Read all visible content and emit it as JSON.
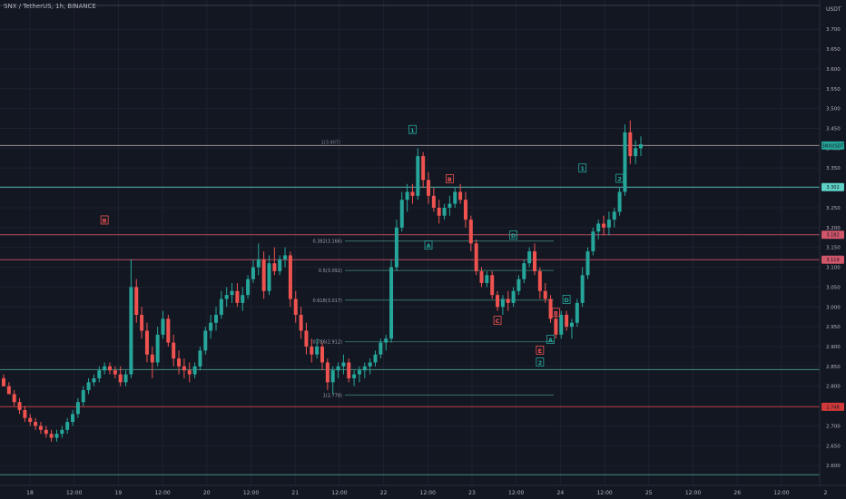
{
  "chart_data": {
    "type": "candlestick",
    "title": "SNX / TetherUS, 1h, BINANCE",
    "y_unit": "USDT",
    "ylim": [
      2.55,
      3.76
    ],
    "y_ticks": [
      "3.700",
      "3.650",
      "3.600",
      "3.550",
      "3.500",
      "3.450",
      "3.400",
      "3.350",
      "3.300",
      "3.250",
      "3.200",
      "3.150",
      "3.100",
      "3.050",
      "3.000",
      "2.950",
      "2.900",
      "2.850",
      "2.800",
      "2.750",
      "2.700",
      "2.650",
      "2.600"
    ],
    "x_ticks": [
      "18",
      "12:00",
      "19",
      "12:00",
      "20",
      "12:00",
      "21",
      "12:00",
      "22",
      "12:00",
      "23",
      "12:00",
      "24",
      "12:00",
      "25",
      "12:00",
      "26",
      "12:00",
      "2"
    ],
    "candles": [
      [
        2.82,
        2.83,
        2.8,
        2.8
      ],
      [
        2.8,
        2.81,
        2.78,
        2.78
      ],
      [
        2.78,
        2.79,
        2.75,
        2.76
      ],
      [
        2.76,
        2.77,
        2.73,
        2.74
      ],
      [
        2.74,
        2.75,
        2.71,
        2.72
      ],
      [
        2.72,
        2.73,
        2.7,
        2.71
      ],
      [
        2.71,
        2.72,
        2.69,
        2.7
      ],
      [
        2.7,
        2.71,
        2.68,
        2.69
      ],
      [
        2.69,
        2.7,
        2.67,
        2.68
      ],
      [
        2.68,
        2.69,
        2.66,
        2.67
      ],
      [
        2.67,
        2.69,
        2.66,
        2.68
      ],
      [
        2.68,
        2.7,
        2.67,
        2.69
      ],
      [
        2.69,
        2.72,
        2.68,
        2.71
      ],
      [
        2.71,
        2.74,
        2.7,
        2.73
      ],
      [
        2.73,
        2.77,
        2.72,
        2.76
      ],
      [
        2.76,
        2.8,
        2.75,
        2.79
      ],
      [
        2.79,
        2.82,
        2.78,
        2.81
      ],
      [
        2.81,
        2.83,
        2.8,
        2.82
      ],
      [
        2.82,
        2.85,
        2.81,
        2.84
      ],
      [
        2.84,
        2.86,
        2.83,
        2.85
      ],
      [
        2.85,
        2.86,
        2.83,
        2.84
      ],
      [
        2.84,
        2.85,
        2.82,
        2.83
      ],
      [
        2.83,
        2.85,
        2.8,
        2.81
      ],
      [
        2.81,
        2.84,
        2.8,
        2.83
      ],
      [
        2.83,
        3.12,
        2.82,
        3.05
      ],
      [
        3.05,
        3.07,
        2.96,
        2.98
      ],
      [
        2.98,
        3.0,
        2.92,
        2.94
      ],
      [
        2.94,
        2.96,
        2.86,
        2.88
      ],
      [
        2.88,
        2.9,
        2.82,
        2.86
      ],
      [
        2.86,
        2.95,
        2.85,
        2.93
      ],
      [
        2.93,
        2.99,
        2.92,
        2.97
      ],
      [
        2.97,
        2.98,
        2.9,
        2.91
      ],
      [
        2.91,
        2.93,
        2.85,
        2.87
      ],
      [
        2.87,
        2.89,
        2.83,
        2.85
      ],
      [
        2.85,
        2.87,
        2.82,
        2.84
      ],
      [
        2.84,
        2.86,
        2.81,
        2.83
      ],
      [
        2.83,
        2.86,
        2.82,
        2.85
      ],
      [
        2.85,
        2.9,
        2.84,
        2.89
      ],
      [
        2.89,
        2.95,
        2.88,
        2.94
      ],
      [
        2.94,
        2.98,
        2.92,
        2.96
      ],
      [
        2.96,
        3.0,
        2.94,
        2.98
      ],
      [
        2.98,
        3.04,
        2.97,
        3.02
      ],
      [
        3.02,
        3.05,
        3.0,
        3.03
      ],
      [
        3.03,
        3.06,
        3.01,
        3.04
      ],
      [
        3.04,
        3.06,
        3.0,
        3.01
      ],
      [
        3.01,
        3.05,
        2.99,
        3.03
      ],
      [
        3.03,
        3.08,
        3.02,
        3.07
      ],
      [
        3.07,
        3.12,
        3.06,
        3.1
      ],
      [
        3.1,
        3.16,
        3.08,
        3.12
      ],
      [
        3.12,
        3.14,
        3.02,
        3.04
      ],
      [
        3.04,
        3.13,
        3.03,
        3.11
      ],
      [
        3.11,
        3.15,
        3.08,
        3.09
      ],
      [
        3.09,
        3.13,
        3.08,
        3.12
      ],
      [
        3.12,
        3.15,
        3.1,
        3.13
      ],
      [
        3.13,
        3.14,
        3.0,
        3.02
      ],
      [
        3.02,
        3.04,
        2.96,
        2.98
      ],
      [
        2.98,
        3.0,
        2.92,
        2.94
      ],
      [
        2.94,
        2.96,
        2.88,
        2.9
      ],
      [
        2.9,
        2.92,
        2.86,
        2.88
      ],
      [
        2.88,
        2.92,
        2.87,
        2.9
      ],
      [
        2.9,
        2.91,
        2.84,
        2.86
      ],
      [
        2.86,
        2.87,
        2.79,
        2.81
      ],
      [
        2.81,
        2.85,
        2.78,
        2.84
      ],
      [
        2.84,
        2.86,
        2.82,
        2.85
      ],
      [
        2.85,
        2.88,
        2.83,
        2.86
      ],
      [
        2.86,
        2.87,
        2.81,
        2.82
      ],
      [
        2.82,
        2.84,
        2.8,
        2.83
      ],
      [
        2.83,
        2.85,
        2.81,
        2.84
      ],
      [
        2.84,
        2.86,
        2.82,
        2.85
      ],
      [
        2.85,
        2.87,
        2.83,
        2.86
      ],
      [
        2.86,
        2.89,
        2.85,
        2.88
      ],
      [
        2.88,
        2.92,
        2.87,
        2.91
      ],
      [
        2.91,
        2.93,
        2.89,
        2.92
      ],
      [
        2.92,
        3.12,
        2.91,
        3.1
      ],
      [
        3.1,
        3.22,
        3.09,
        3.2
      ],
      [
        3.2,
        3.29,
        3.19,
        3.27
      ],
      [
        3.27,
        3.31,
        3.24,
        3.29
      ],
      [
        3.29,
        3.31,
        3.26,
        3.28
      ],
      [
        3.28,
        3.4,
        3.27,
        3.38
      ],
      [
        3.38,
        3.39,
        3.3,
        3.32
      ],
      [
        3.32,
        3.34,
        3.26,
        3.28
      ],
      [
        3.28,
        3.3,
        3.24,
        3.25
      ],
      [
        3.25,
        3.27,
        3.21,
        3.23
      ],
      [
        3.23,
        3.26,
        3.22,
        3.25
      ],
      [
        3.25,
        3.28,
        3.23,
        3.26
      ],
      [
        3.26,
        3.3,
        3.25,
        3.29
      ],
      [
        3.29,
        3.31,
        3.26,
        3.27
      ],
      [
        3.27,
        3.29,
        3.2,
        3.22
      ],
      [
        3.22,
        3.23,
        3.14,
        3.16
      ],
      [
        3.16,
        3.17,
        3.08,
        3.09
      ],
      [
        3.09,
        3.1,
        3.05,
        3.06
      ],
      [
        3.06,
        3.09,
        3.05,
        3.08
      ],
      [
        3.08,
        3.09,
        3.02,
        3.03
      ],
      [
        3.03,
        3.04,
        2.99,
        3.0
      ],
      [
        3.0,
        3.03,
        2.98,
        3.02
      ],
      [
        3.02,
        3.04,
        2.99,
        3.01
      ],
      [
        3.01,
        3.05,
        3.0,
        3.04
      ],
      [
        3.04,
        3.08,
        3.03,
        3.07
      ],
      [
        3.07,
        3.12,
        3.06,
        3.11
      ],
      [
        3.11,
        3.15,
        3.1,
        3.14
      ],
      [
        3.14,
        3.16,
        3.08,
        3.09
      ],
      [
        3.09,
        3.1,
        3.02,
        3.04
      ],
      [
        3.04,
        3.06,
        3.01,
        3.02
      ],
      [
        3.02,
        3.03,
        2.96,
        2.97
      ],
      [
        2.97,
        2.98,
        2.92,
        2.93
      ],
      [
        2.93,
        2.99,
        2.92,
        2.98
      ],
      [
        2.98,
        2.99,
        2.94,
        2.95
      ],
      [
        2.95,
        2.97,
        2.92,
        2.96
      ],
      [
        2.96,
        3.02,
        2.95,
        3.01
      ],
      [
        3.01,
        3.1,
        3.0,
        3.08
      ],
      [
        3.08,
        3.15,
        3.07,
        3.14
      ],
      [
        3.14,
        3.2,
        3.13,
        3.19
      ],
      [
        3.19,
        3.22,
        3.17,
        3.21
      ],
      [
        3.21,
        3.23,
        3.18,
        3.2
      ],
      [
        3.2,
        3.24,
        3.18,
        3.22
      ],
      [
        3.22,
        3.25,
        3.2,
        3.24
      ],
      [
        3.24,
        3.3,
        3.23,
        3.29
      ],
      [
        3.29,
        3.46,
        3.28,
        3.44
      ],
      [
        3.44,
        3.47,
        3.36,
        3.38
      ],
      [
        3.38,
        3.42,
        3.36,
        3.4
      ],
      [
        3.4,
        3.43,
        3.38,
        3.41
      ]
    ],
    "horizontal_lines": [
      {
        "price": 3.407,
        "label": "1(3.407)",
        "color": "#b2a5a8"
      },
      {
        "price": 3.302,
        "color": "#5fd0c6"
      },
      {
        "price": 3.182,
        "color": "#d0566a"
      },
      {
        "price": 3.119,
        "color": "#d0566a"
      },
      {
        "price": 2.842,
        "color": "#4aa38f"
      },
      {
        "price": 2.748,
        "color": "#d23a3a"
      },
      {
        "price": 2.577,
        "color": "#4aa38f"
      }
    ],
    "fib_levels": [
      {
        "price": 3.166,
        "label": "0.382(3.166)"
      },
      {
        "price": 3.092,
        "label": "0.5(3.092)"
      },
      {
        "price": 3.017,
        "label": "0.618(3.017)"
      },
      {
        "price": 2.912,
        "label": "0.786(2.912)"
      },
      {
        "price": 2.778,
        "label": "1(2.778)"
      }
    ],
    "price_tags": [
      {
        "price": 3.407,
        "label": "SNXUSDT",
        "color": "#26a69a"
      },
      {
        "price": 3.302,
        "label": "3.302",
        "color": "#5fd0c6"
      },
      {
        "price": 3.182,
        "label": "3.182",
        "color": "#d0566a"
      },
      {
        "price": 3.119,
        "label": "3.119",
        "color": "#d0566a"
      },
      {
        "price": 2.748,
        "label": "2.748",
        "color": "#d23a3a"
      }
    ],
    "wave_labels": [
      {
        "label": "B",
        "bar": 19,
        "price": 3.218,
        "color": "#ef5350"
      },
      {
        "label": "1",
        "bar": 77,
        "price": 3.446,
        "color": "#26a69a"
      },
      {
        "label": "B",
        "bar": 84,
        "price": 3.322,
        "color": "#ef5350"
      },
      {
        "label": "A",
        "bar": 80,
        "price": 3.155,
        "color": "#26a69a"
      },
      {
        "label": "D",
        "bar": 96,
        "price": 3.18,
        "color": "#26a69a"
      },
      {
        "label": "C",
        "bar": 93,
        "price": 2.965,
        "color": "#ef5350"
      },
      {
        "label": "1",
        "bar": 109,
        "price": 3.349,
        "color": "#26a69a"
      },
      {
        "label": "2",
        "bar": 116,
        "price": 3.323,
        "color": "#26a69a"
      },
      {
        "label": "D",
        "bar": 106,
        "price": 3.018,
        "color": "#26a69a"
      },
      {
        "label": "A",
        "bar": 103,
        "price": 2.917,
        "color": "#26a69a"
      },
      {
        "label": "2",
        "bar": 101,
        "price": 2.86,
        "color": "#26a69a"
      },
      {
        "label": "E",
        "bar": 101,
        "price": 2.89,
        "color": "#ef5350"
      },
      {
        "label": "B",
        "bar": 104,
        "price": 2.985,
        "color": "#ef5350"
      }
    ]
  }
}
